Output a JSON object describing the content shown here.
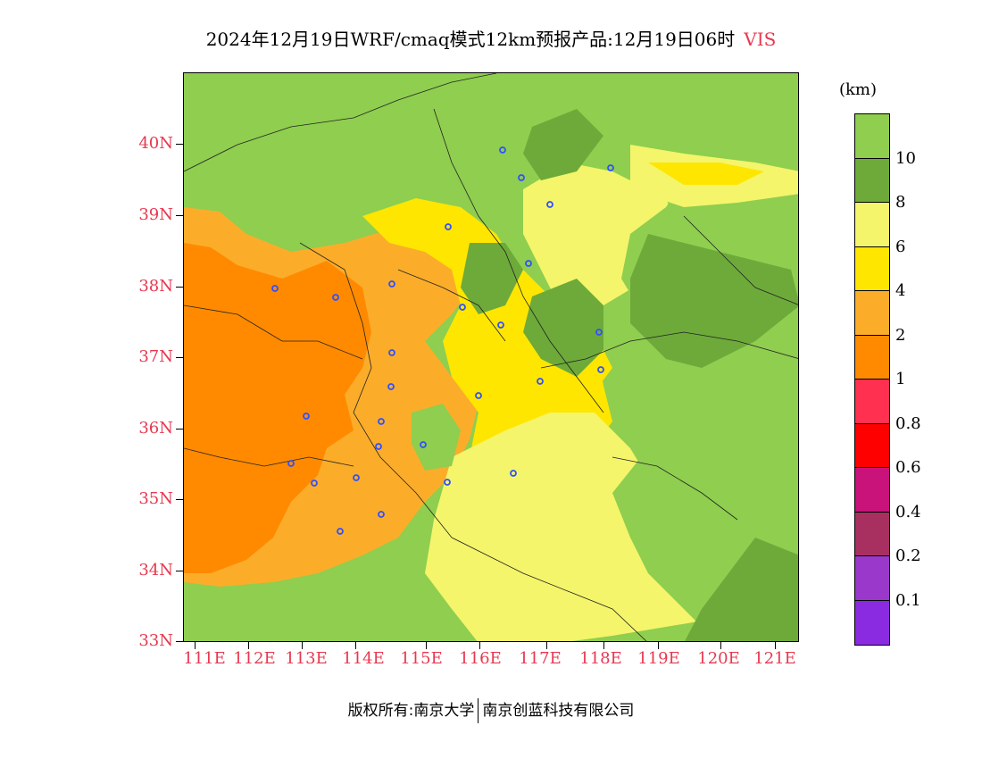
{
  "title": {
    "text": "2024年12月19日WRF/cmaq模式12km预报产品:12月19日06时",
    "variable": "VIS",
    "variable_color": "#e8384f"
  },
  "map": {
    "lat_labels": [
      "40N",
      "39N",
      "38N",
      "37N",
      "36N",
      "35N",
      "34N",
      "33N"
    ],
    "lon_labels": [
      "111E",
      "112E",
      "113E",
      "114E",
      "115E",
      "116E",
      "117E",
      "118E",
      "119E",
      "120E",
      "121E"
    ],
    "label_color": "#e8384f",
    "station_marker_color": "#3050ff"
  },
  "colorbar": {
    "unit": "(km)",
    "labels": [
      "10",
      "8",
      "6",
      "4",
      "2",
      "1",
      "0.8",
      "0.6",
      "0.4",
      "0.2",
      "0.1"
    ],
    "colors": [
      "#8fce4f",
      "#6daa3a",
      "#f4f56a",
      "#ffe600",
      "#fbad2a",
      "#ff8a00",
      "#ff3050",
      "#ff0000",
      "#c9127a",
      "#a83060",
      "#9a38cc",
      "#8a2be2"
    ]
  },
  "footer": {
    "left": "版权所有:南京大学",
    "right": "南京创蓝科技有限公司"
  }
}
